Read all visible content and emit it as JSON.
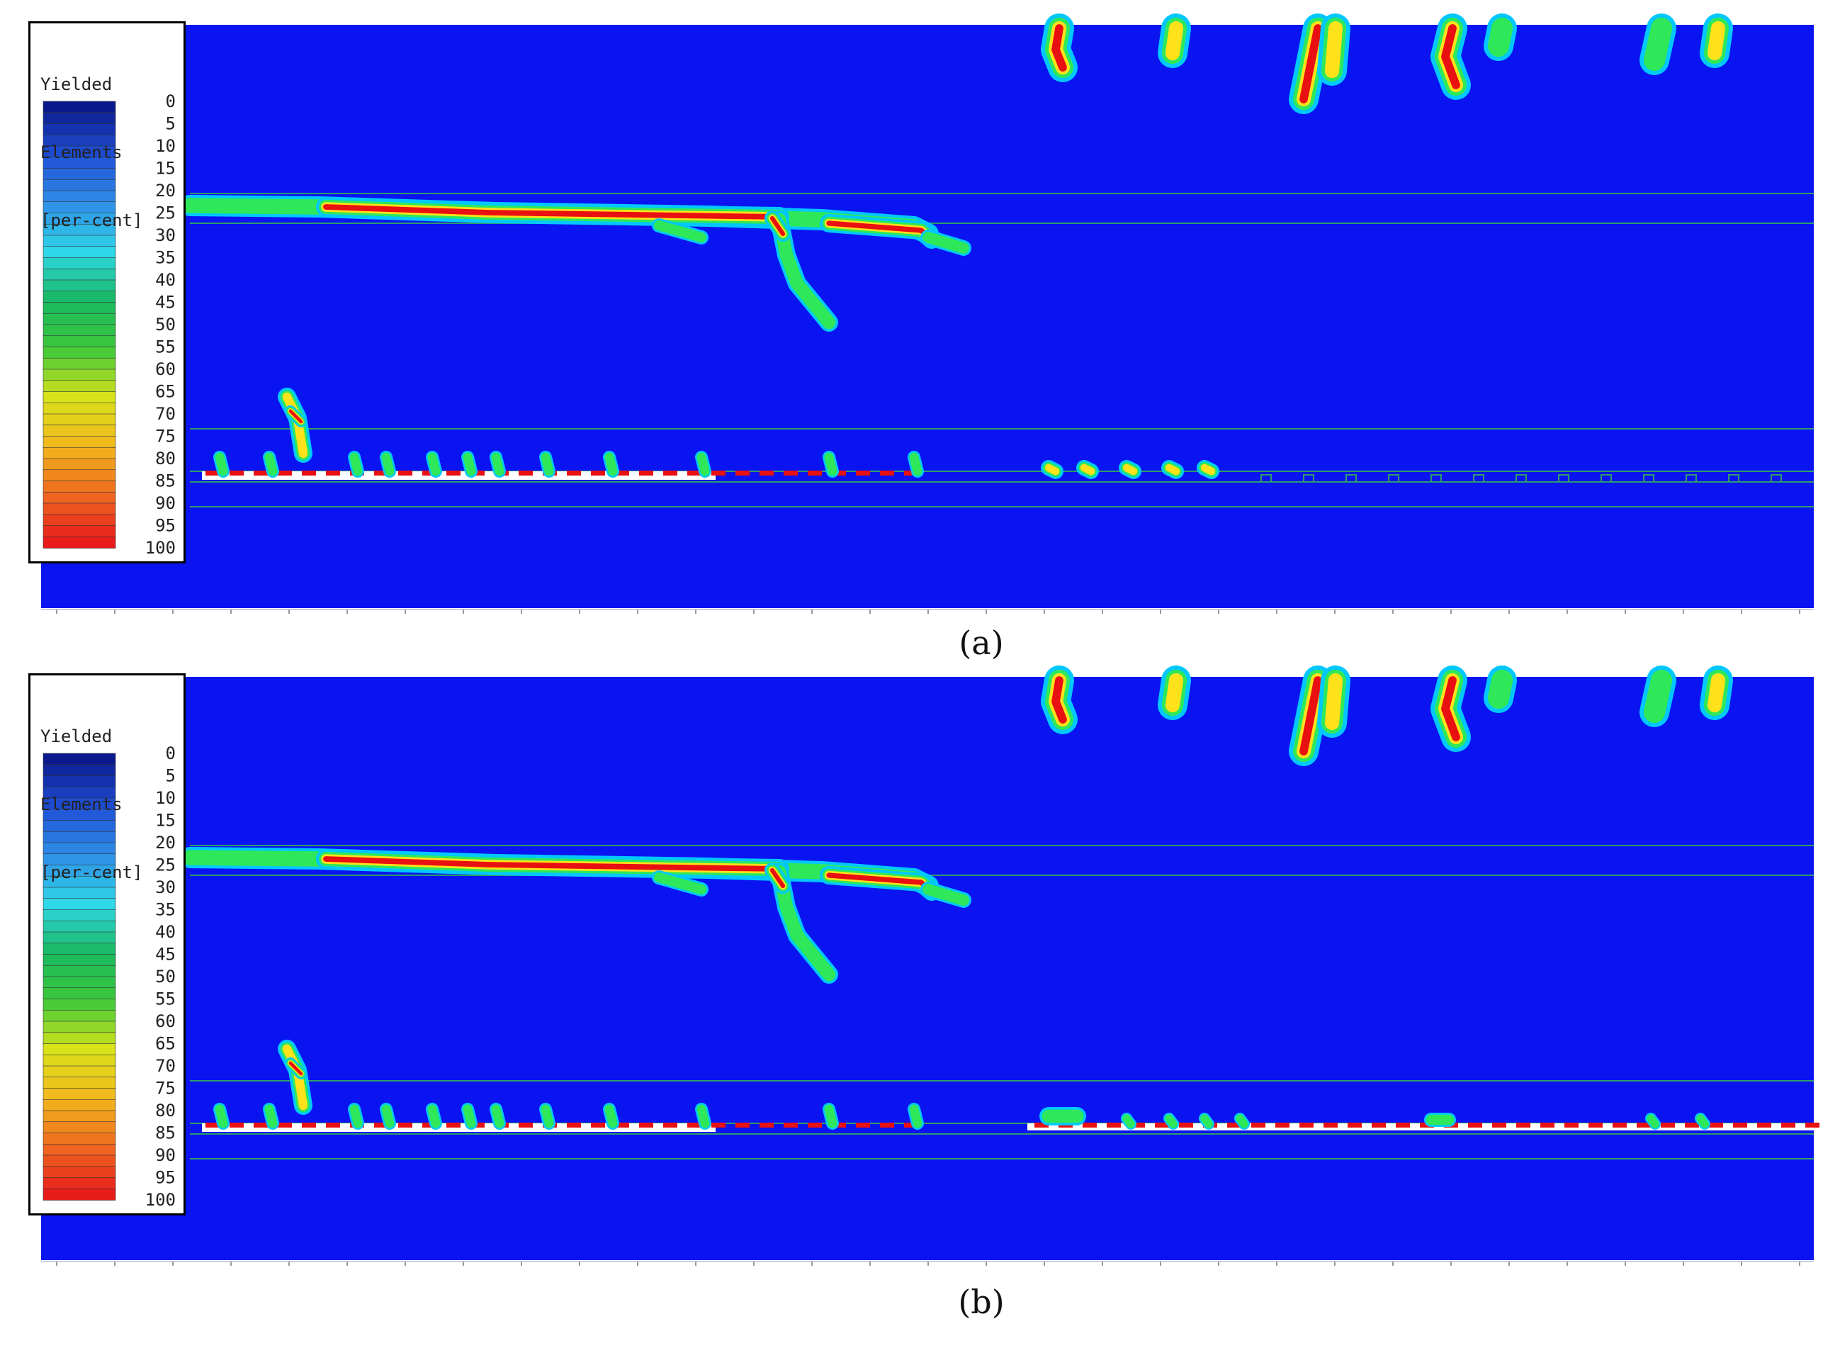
{
  "legend": {
    "title_lines": [
      "Yielded",
      "Elements",
      "[per-cent]"
    ],
    "ticks": [
      "0",
      "5",
      "10",
      "15",
      "20",
      "25",
      "30",
      "35",
      "40",
      "45",
      "50",
      "55",
      "60",
      "65",
      "70",
      "75",
      "80",
      "85",
      "90",
      "95",
      "100"
    ],
    "color_stops": [
      "#0a1a8c",
      "#1f4fd6",
      "#2f8fe8",
      "#2fd8e8",
      "#18b860",
      "#3ec93a",
      "#d8e21a",
      "#f2b81c",
      "#ee6a20",
      "#e81b1b"
    ]
  },
  "colors": {
    "background": "#0a14f0",
    "yield_outer": "#00c8ff",
    "yield_mid": "#2ee85a",
    "yield_high": "#ffe21a",
    "yield_max": "#e81010",
    "layer_line": "#2f9c6a"
  },
  "panels": [
    {
      "id": "a",
      "caption": "(a)"
    },
    {
      "id": "b",
      "caption": "(b)"
    }
  ]
}
